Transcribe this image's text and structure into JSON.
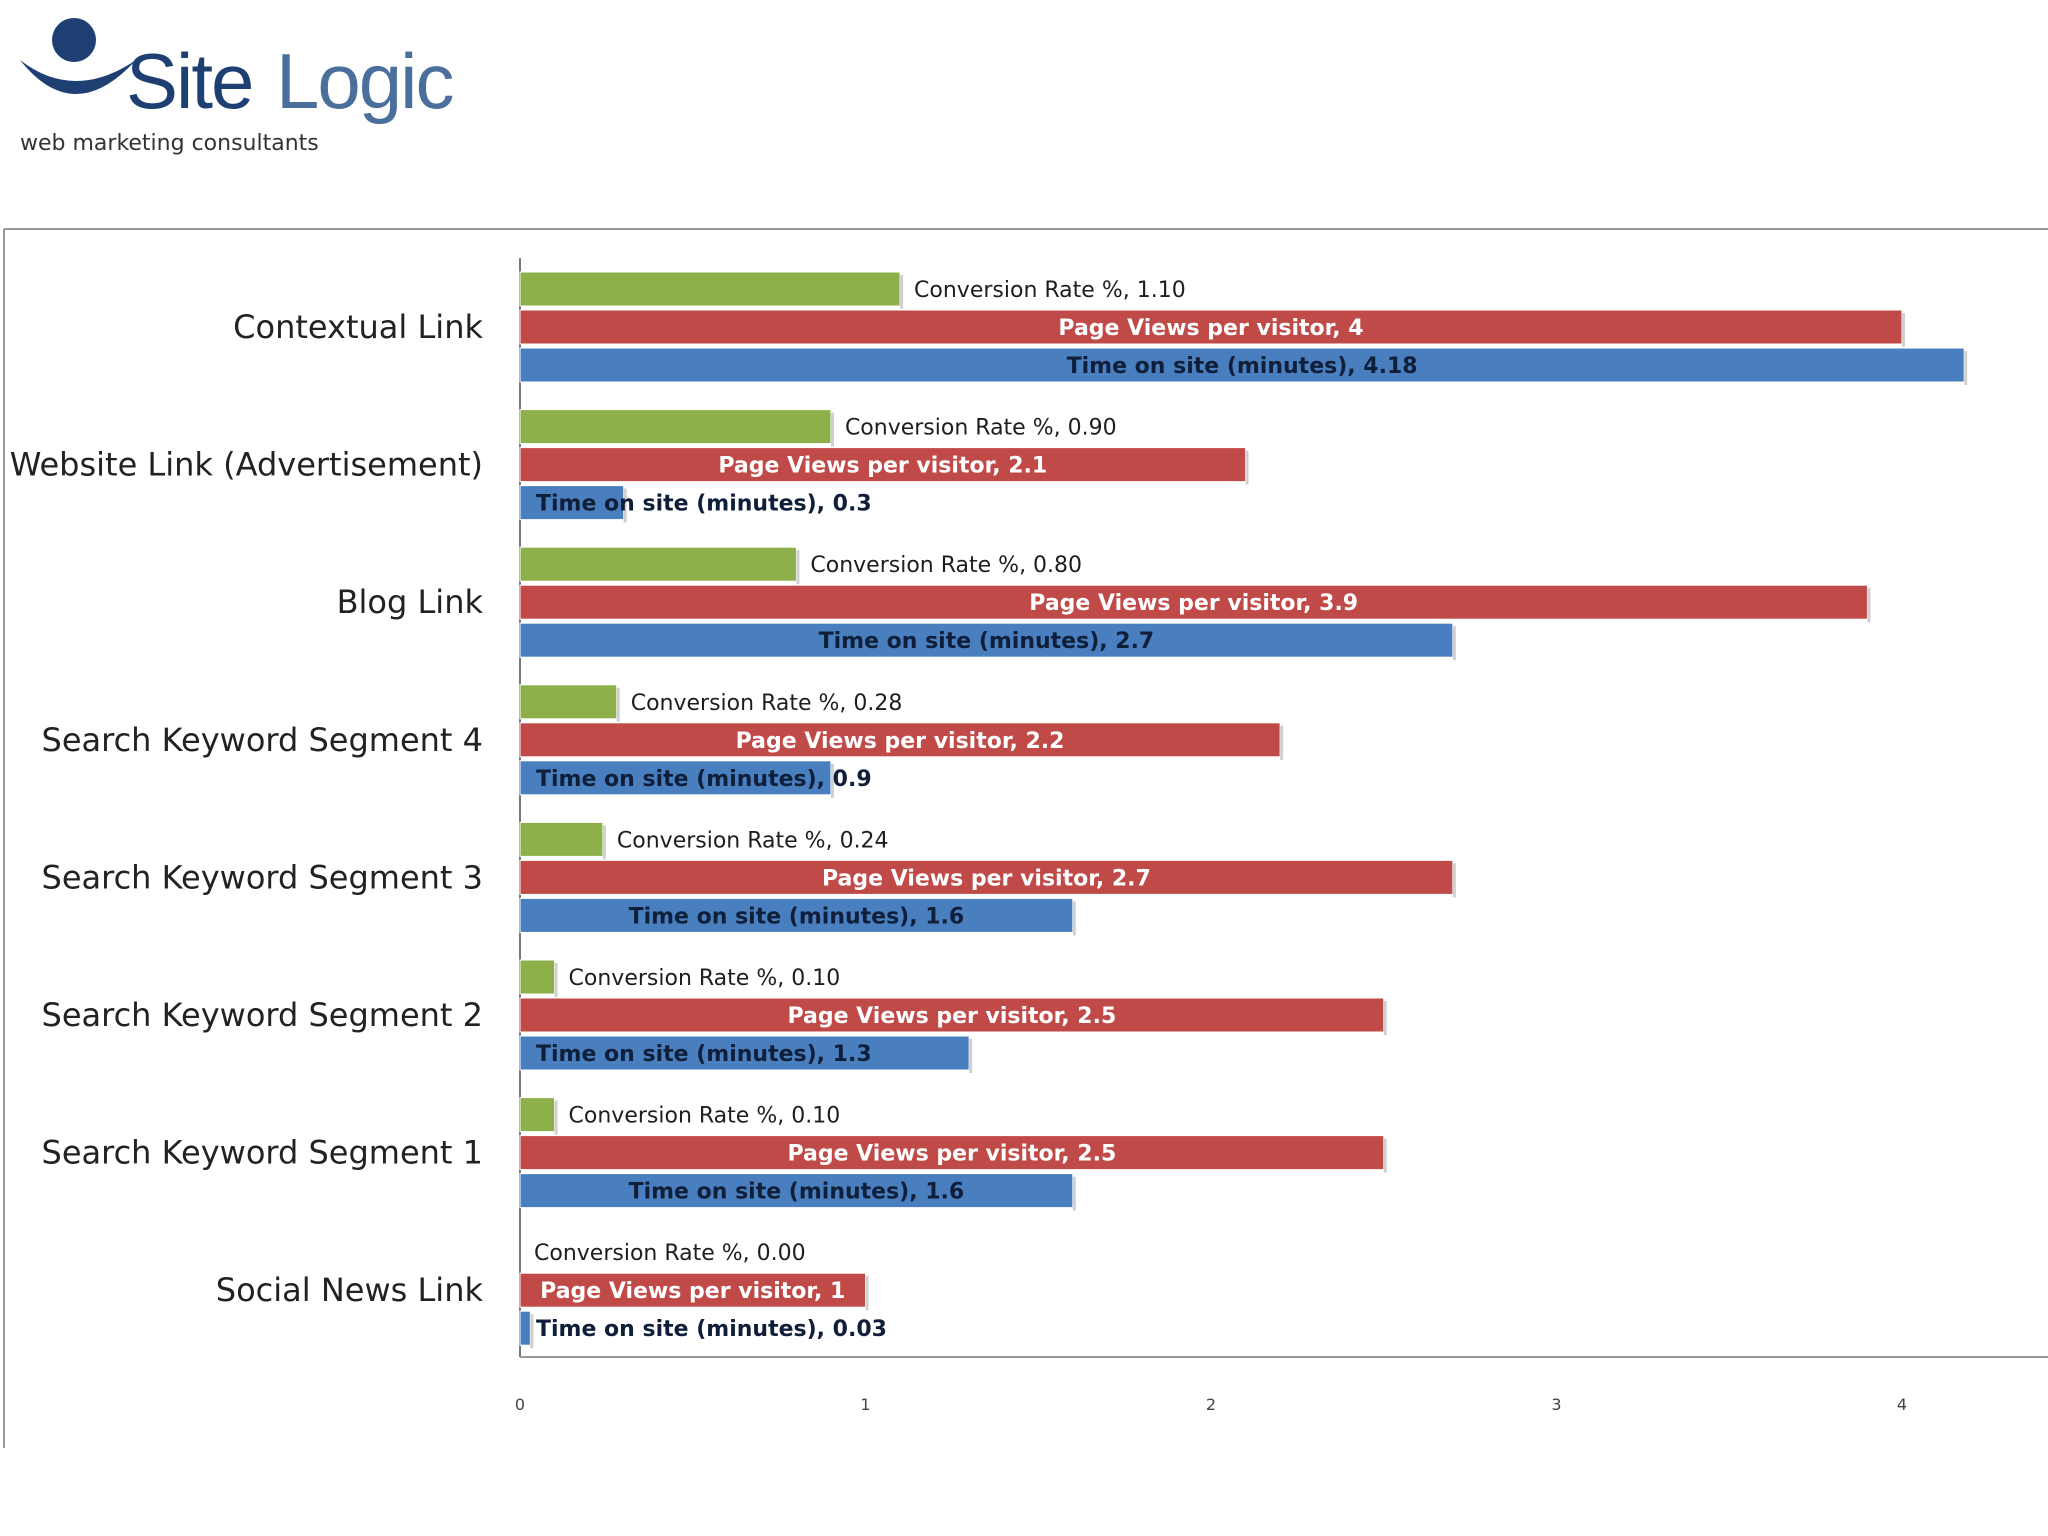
{
  "logo": {
    "brand_part1": "Site",
    "brand_part2": "Logic",
    "tagline": "web marketing consultants"
  },
  "colors": {
    "conversion": "#8db04a",
    "pageviews": "#c04a48",
    "time": "#4a7fbf",
    "axis": "#888888"
  },
  "chart_data": {
    "type": "bar",
    "orientation": "horizontal",
    "title": "",
    "xlabel": "",
    "ylabel": "",
    "xlim": [
      0,
      4.4
    ],
    "xticks": [
      0,
      1,
      2,
      3,
      4
    ],
    "grid": false,
    "categories": [
      "Contextual Link",
      "Website Link (Advertisement)",
      "Blog Link",
      "Search Keyword Segment 4",
      "Search Keyword Segment 3",
      "Search Keyword Segment 2",
      "Search Keyword Segment 1",
      "Social News Link"
    ],
    "series": [
      {
        "name": "Conversion Rate %",
        "color": "#8db04a",
        "values": [
          1.1,
          0.9,
          0.8,
          0.28,
          0.24,
          0.1,
          0.1,
          0.0
        ],
        "labels": [
          "Conversion Rate %, 1.10",
          "Conversion Rate %, 0.90",
          "Conversion Rate %, 0.80",
          "Conversion Rate %, 0.28",
          "Conversion Rate %, 0.24",
          "Conversion Rate %, 0.10",
          "Conversion Rate %, 0.10",
          "Conversion Rate %, 0.00"
        ]
      },
      {
        "name": "Page Views per visitor",
        "color": "#c04a48",
        "values": [
          4,
          2.1,
          3.9,
          2.2,
          2.7,
          2.5,
          2.5,
          1
        ],
        "labels": [
          "Page Views per visitor, 4",
          "Page Views per visitor, 2.1",
          "Page Views per visitor, 3.9",
          "Page Views per visitor, 2.2",
          "Page Views per visitor, 2.7",
          "Page Views per visitor, 2.5",
          "Page Views per visitor, 2.5",
          "Page Views per visitor, 1"
        ]
      },
      {
        "name": "Time on site (minutes)",
        "color": "#4a7fbf",
        "values": [
          4.18,
          0.3,
          2.7,
          0.9,
          1.6,
          1.3,
          1.6,
          0.03
        ],
        "labels": [
          "Time on site (minutes), 4.18",
          "Time on site (minutes), 0.3",
          "Time on site (minutes), 2.7",
          "Time on site (minutes), 0.9",
          "Time on site (minutes), 1.6",
          "Time on site (minutes), 1.3",
          "Time on site (minutes), 1.6",
          "Time on site (minutes), 0.03"
        ]
      }
    ]
  }
}
